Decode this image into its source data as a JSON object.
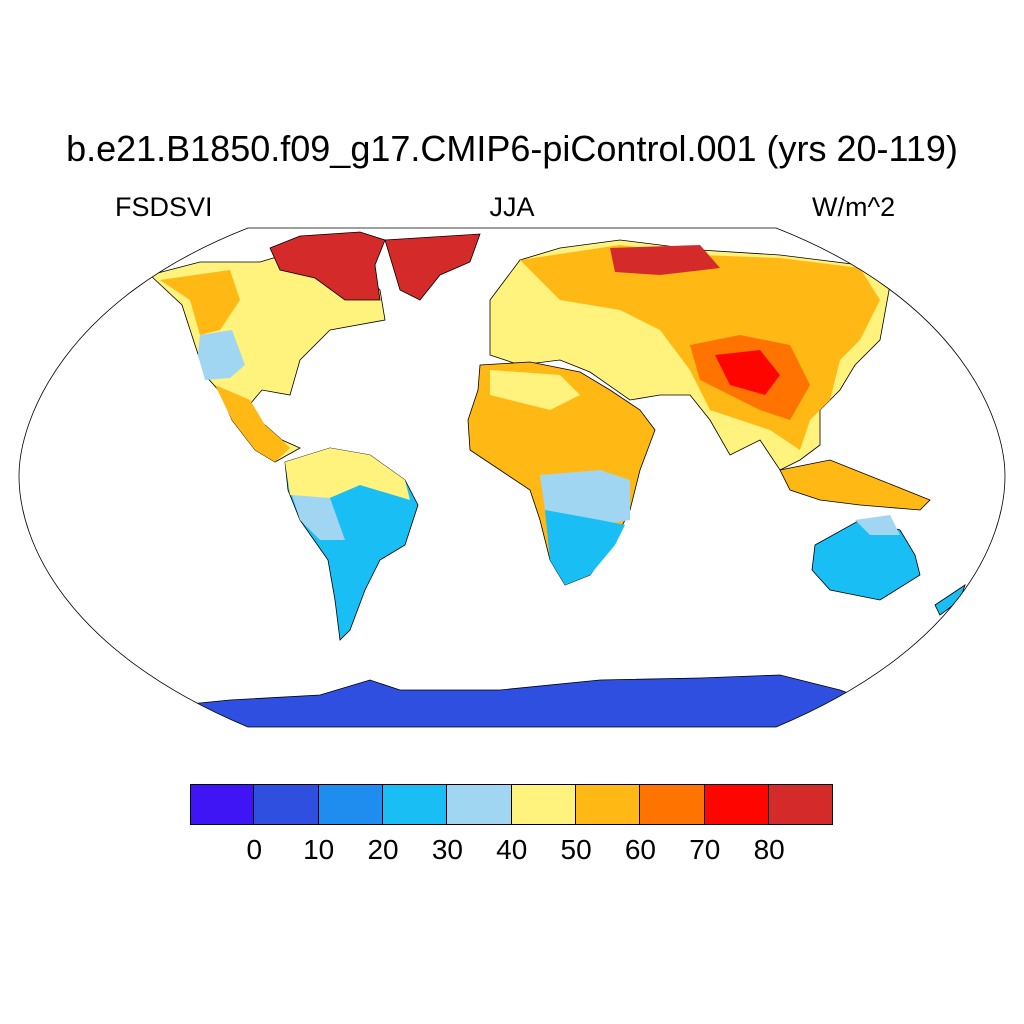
{
  "title": "b.e21.B1850.f09_g17.CMIP6-piControl.001 (yrs 20-119)",
  "left_subtitle": "FSDSVI",
  "center_subtitle": "JJA",
  "right_subtitle": "W/m^2",
  "colorbar": {
    "levels": [
      "0",
      "10",
      "20",
      "30",
      "40",
      "50",
      "60",
      "70",
      "80"
    ],
    "colors": [
      "#3f14f5",
      "#2f4fe0",
      "#1f8cf0",
      "#19bef5",
      "#a0d6f2",
      "#fff27d",
      "#ffb814",
      "#ff7300",
      "#ff0500",
      "#d42a2a"
    ]
  },
  "regions": [
    {
      "name": "Antarctica",
      "color": "#2f4fe0"
    },
    {
      "name": "Greenland",
      "color": "#d42a2a"
    },
    {
      "name": "Canadian Arctic",
      "color": "#d42a2a"
    },
    {
      "name": "Siberia Arctic coast",
      "color": "#d42a2a"
    },
    {
      "name": "Tibetan Plateau",
      "color": "#ff0500"
    },
    {
      "name": "South America",
      "color": "#19bef5"
    },
    {
      "name": "Southern Africa",
      "color": "#19bef5"
    },
    {
      "name": "Australia",
      "color": "#19bef5"
    }
  ]
}
